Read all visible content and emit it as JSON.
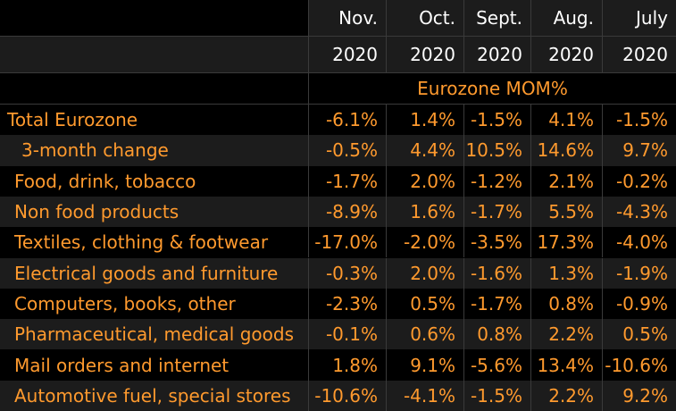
{
  "header": {
    "months": [
      "Nov.",
      "Oct.",
      "Sept.",
      "Aug.",
      "July"
    ],
    "years": [
      "2020",
      "2020",
      "2020",
      "2020",
      "2020"
    ],
    "section_label": "Eurozone MOM%"
  },
  "rows": [
    {
      "label": "Total Eurozone",
      "values": [
        "-6.1%",
        "1.4%",
        "-1.5%",
        "4.1%",
        "-1.5%"
      ]
    },
    {
      "label": "3-month change",
      "values": [
        "-0.5%",
        "4.4%",
        "10.5%",
        "14.6%",
        "9.7%"
      ]
    },
    {
      "label": "Food, drink, tobacco",
      "values": [
        "-1.7%",
        "2.0%",
        "-1.2%",
        "2.1%",
        "-0.2%"
      ]
    },
    {
      "label": "Non food products",
      "values": [
        "-8.9%",
        "1.6%",
        "-1.7%",
        "5.5%",
        "-4.3%"
      ]
    },
    {
      "label": "Textiles, clothing & footwear",
      "values": [
        "-17.0%",
        "-2.0%",
        "-3.5%",
        "17.3%",
        "-4.0%"
      ]
    },
    {
      "label": "Electrical goods and furniture",
      "values": [
        "-0.3%",
        "2.0%",
        "-1.6%",
        "1.3%",
        "-1.9%"
      ]
    },
    {
      "label": "Computers, books, other",
      "values": [
        "-2.3%",
        "0.5%",
        "-1.7%",
        "0.8%",
        "-0.9%"
      ]
    },
    {
      "label": "Pharmaceutical, medical goods",
      "values": [
        "-0.1%",
        "0.6%",
        "0.8%",
        "2.2%",
        "0.5%"
      ]
    },
    {
      "label": "Mail orders and internet",
      "values": [
        "1.8%",
        "9.1%",
        "-5.6%",
        "13.4%",
        "-10.6%"
      ]
    },
    {
      "label": "Automotive fuel, special stores",
      "values": [
        "-10.6%",
        "-4.1%",
        "-1.5%",
        "2.2%",
        "9.2%"
      ]
    }
  ],
  "colors": {
    "text_accent": "#ff9a2e",
    "header_text": "#ffffff",
    "band": "#1c1c1c",
    "background": "#000000"
  }
}
